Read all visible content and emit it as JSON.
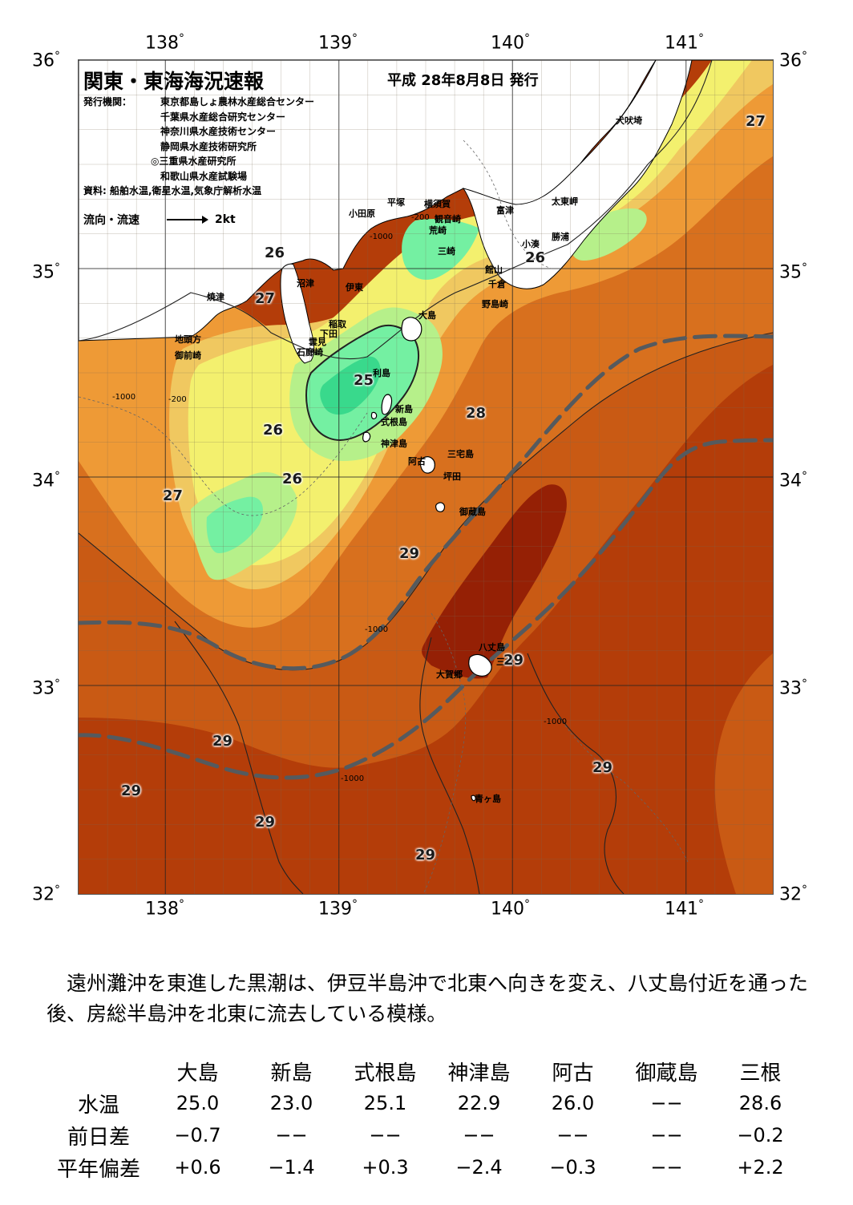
{
  "header": {
    "title": "関東・東海海況速報",
    "date": "平成 28年8月8日 発行",
    "issuer_label": "発行機関：",
    "issuers": [
      "東京都島しょ農林水産総合センター",
      "千葉県水産総合研究センター",
      "神奈川県水産技術センター",
      "静岡県水産技術研究所",
      "◎三重県水産研究所",
      "和歌山県水産試験場"
    ],
    "sources": "資料: 船舶水温,衛星水温,気象庁解析水温",
    "legend_label": "流向・流速",
    "legend_speed": "2kt"
  },
  "axes": {
    "lon_labels": [
      "138",
      "139",
      "140",
      "141"
    ],
    "lat_labels": [
      "36",
      "35",
      "34",
      "33",
      "32"
    ],
    "degree": "°"
  },
  "map": {
    "extent": {
      "lon": [
        137.5,
        141.5
      ],
      "lat": [
        32.0,
        36.0
      ]
    },
    "colors": {
      "land": "#ffffff",
      "t24": "#39d98c",
      "t25": "#74f0a2",
      "t25_5": "#b6f08a",
      "t26": "#f3f06e",
      "t26_5": "#f0c860",
      "t27": "#ee9a36",
      "t28": "#d8701e",
      "t28_5": "#c95a14",
      "t29": "#b43d09",
      "t29_5": "#952005",
      "kuroshio": "#555a5e"
    },
    "places": [
      {
        "name": "犬吠埼"
      },
      {
        "name": "太東岬"
      },
      {
        "name": "勝浦"
      },
      {
        "name": "小湊"
      },
      {
        "name": "富津"
      },
      {
        "name": "館山"
      },
      {
        "name": "千倉"
      },
      {
        "name": "野島崎"
      },
      {
        "name": "平塚"
      },
      {
        "name": "横須賀"
      },
      {
        "name": "観音崎"
      },
      {
        "name": "荒崎"
      },
      {
        "name": "三崎"
      },
      {
        "name": "小田原"
      },
      {
        "name": "伊東"
      },
      {
        "name": "沼津"
      },
      {
        "name": "焼津"
      },
      {
        "name": "稲取"
      },
      {
        "name": "下田"
      },
      {
        "name": "雲見"
      },
      {
        "name": "石廊崎"
      },
      {
        "name": "地頭方"
      },
      {
        "name": "御前崎"
      },
      {
        "name": "大島"
      },
      {
        "name": "利島"
      },
      {
        "name": "新島"
      },
      {
        "name": "式根島"
      },
      {
        "name": "神津島"
      },
      {
        "name": "阿古"
      },
      {
        "name": "三宅島"
      },
      {
        "name": "坪田"
      },
      {
        "name": "御蔵島"
      },
      {
        "name": "八丈島"
      },
      {
        "name": "三根"
      },
      {
        "name": "大賀郷"
      },
      {
        "name": "青ヶ島"
      }
    ],
    "temperature_labels": [
      {
        "value": "27"
      },
      {
        "value": "26"
      },
      {
        "value": "26"
      },
      {
        "value": "27"
      },
      {
        "value": "25"
      },
      {
        "value": "28"
      },
      {
        "value": "26"
      },
      {
        "value": "26"
      },
      {
        "value": "27"
      },
      {
        "value": "29"
      },
      {
        "value": "29"
      },
      {
        "value": "29"
      },
      {
        "value": "29"
      },
      {
        "value": "29"
      },
      {
        "value": "29"
      },
      {
        "value": "29"
      }
    ],
    "depth_labels": [
      "-200",
      "-1000"
    ]
  },
  "comment": "遠州灘沖を東進した黒潮は、伊豆半島沖で北東へ向きを変え、八丈島付近を通った後、房総半島沖を北東に流去している模様。",
  "observations": {
    "stations": [
      "大島",
      "新島",
      "式根島",
      "神津島",
      "阿古",
      "御蔵島",
      "三根"
    ],
    "rows": [
      {
        "label": "水温",
        "values": [
          "25.0",
          "23.0",
          "25.1",
          "22.9",
          "26.0",
          "−−",
          "28.6"
        ]
      },
      {
        "label": "前日差",
        "values": [
          "−0.7",
          "−−",
          "−−",
          "−−",
          "−−",
          "−−",
          "−0.2"
        ]
      },
      {
        "label": "平年偏差",
        "values": [
          "+0.6",
          "−1.4",
          "+0.3",
          "−2.4",
          "−0.3",
          "−−",
          "+2.2"
        ]
      }
    ]
  }
}
